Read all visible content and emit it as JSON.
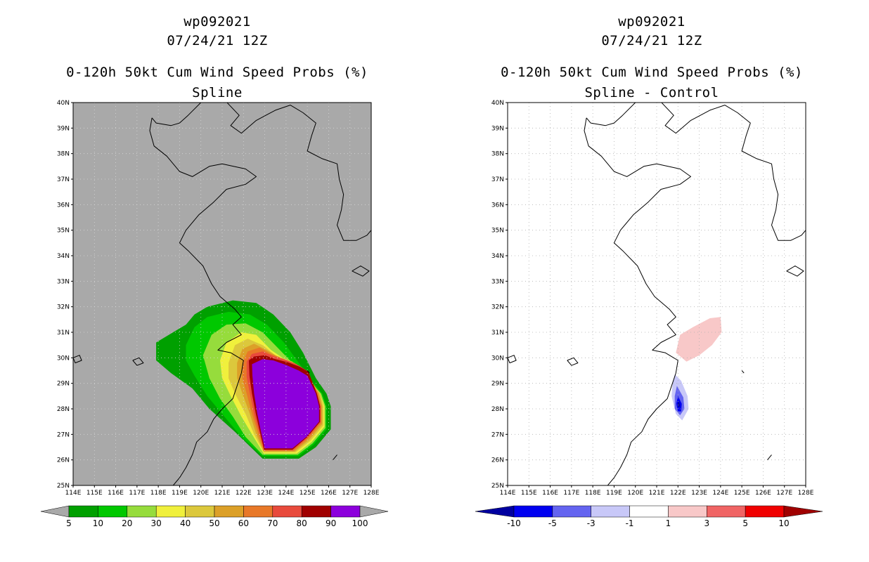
{
  "chart_data": [
    {
      "type": "heatmap",
      "storm_id": "wp092021",
      "datetime": "07/24/21 12Z",
      "title": "0-120h 50kt Cum Wind Speed Probs (%)",
      "subtitle": "Spline",
      "x_ticks": [
        "114E",
        "115E",
        "116E",
        "117E",
        "118E",
        "119E",
        "120E",
        "121E",
        "122E",
        "123E",
        "124E",
        "125E",
        "126E",
        "127E",
        "128E"
      ],
      "y_ticks": [
        "25N",
        "26N",
        "27N",
        "28N",
        "29N",
        "30N",
        "31N",
        "32N",
        "33N",
        "34N",
        "35N",
        "36N",
        "37N",
        "38N",
        "39N",
        "40N"
      ],
      "xlim": [
        114,
        128
      ],
      "ylim": [
        25,
        40
      ],
      "colorbar": {
        "labels": [
          "5",
          "10",
          "20",
          "30",
          "40",
          "50",
          "60",
          "70",
          "80",
          "90",
          "100"
        ],
        "colors": [
          "#00a000",
          "#00c800",
          "#96dc3c",
          "#f0f03c",
          "#dcc83c",
          "#dca028",
          "#e87828",
          "#e84a3c",
          "#a00000",
          "#8c00dc"
        ]
      },
      "contours": [
        {
          "level": 5,
          "color": "#00a000",
          "polygon": [
            [
              117.9,
              30.6
            ],
            [
              118.6,
              30.95
            ],
            [
              119.3,
              31.3
            ],
            [
              119.7,
              31.7
            ],
            [
              120.3,
              32.0
            ],
            [
              121.5,
              32.25
            ],
            [
              122.6,
              32.15
            ],
            [
              123.4,
              31.7
            ],
            [
              124.2,
              31.0
            ],
            [
              124.8,
              30.2
            ],
            [
              125.4,
              29.2
            ],
            [
              125.9,
              28.6
            ],
            [
              126.1,
              28.1
            ],
            [
              126.1,
              27.2
            ],
            [
              125.4,
              26.5
            ],
            [
              124.6,
              26.05
            ],
            [
              122.9,
              26.05
            ],
            [
              121.6,
              27.1
            ],
            [
              120.4,
              28.0
            ],
            [
              119.6,
              28.8
            ],
            [
              118.6,
              29.4
            ],
            [
              117.9,
              29.9
            ]
          ]
        },
        {
          "level": 10,
          "color": "#00c800",
          "polygon": [
            [
              119.3,
              30.5
            ],
            [
              119.7,
              31.2
            ],
            [
              120.3,
              31.6
            ],
            [
              121.3,
              31.8
            ],
            [
              122.3,
              31.7
            ],
            [
              123.1,
              31.3
            ],
            [
              123.9,
              30.6
            ],
            [
              124.6,
              29.8
            ],
            [
              125.2,
              29.1
            ],
            [
              125.7,
              28.6
            ],
            [
              125.9,
              28.1
            ],
            [
              125.9,
              27.2
            ],
            [
              125.3,
              26.6
            ],
            [
              124.6,
              26.15
            ],
            [
              122.9,
              26.15
            ],
            [
              121.9,
              26.9
            ],
            [
              121.0,
              27.8
            ],
            [
              120.3,
              28.5
            ],
            [
              119.7,
              29.3
            ],
            [
              119.3,
              29.9
            ]
          ]
        },
        {
          "level": 20,
          "color": "#96dc3c",
          "polygon": [
            [
              120.1,
              30.1
            ],
            [
              120.5,
              30.9
            ],
            [
              121.2,
              31.3
            ],
            [
              122.1,
              31.35
            ],
            [
              122.9,
              31.0
            ],
            [
              123.6,
              30.4
            ],
            [
              124.3,
              29.8
            ],
            [
              125.1,
              29.1
            ],
            [
              125.65,
              28.6
            ],
            [
              125.85,
              28.1
            ],
            [
              125.85,
              27.25
            ],
            [
              125.25,
              26.65
            ],
            [
              124.55,
              26.2
            ],
            [
              122.9,
              26.2
            ],
            [
              122.1,
              26.9
            ],
            [
              121.5,
              27.7
            ],
            [
              120.9,
              28.4
            ],
            [
              120.4,
              29.2
            ]
          ]
        },
        {
          "level": 30,
          "color": "#f0f03c",
          "polygon": [
            [
              120.9,
              29.9
            ],
            [
              121.2,
              30.6
            ],
            [
              121.9,
              31.0
            ],
            [
              122.6,
              30.9
            ],
            [
              123.3,
              30.3
            ],
            [
              124.1,
              29.85
            ],
            [
              125.0,
              29.2
            ],
            [
              125.6,
              28.6
            ],
            [
              125.8,
              28.1
            ],
            [
              125.8,
              27.3
            ],
            [
              125.2,
              26.7
            ],
            [
              124.5,
              26.25
            ],
            [
              122.95,
              26.25
            ],
            [
              122.4,
              27.0
            ],
            [
              121.9,
              27.7
            ],
            [
              121.4,
              28.5
            ],
            [
              121.0,
              29.2
            ]
          ]
        },
        {
          "level": 40,
          "color": "#dcc83c",
          "polygon": [
            [
              121.3,
              29.8
            ],
            [
              121.6,
              30.5
            ],
            [
              122.2,
              30.75
            ],
            [
              122.9,
              30.5
            ],
            [
              123.5,
              30.1
            ],
            [
              124.3,
              29.85
            ],
            [
              125.0,
              29.3
            ],
            [
              125.6,
              28.6
            ],
            [
              125.75,
              28.1
            ],
            [
              125.75,
              27.35
            ],
            [
              125.15,
              26.75
            ],
            [
              124.45,
              26.3
            ],
            [
              122.95,
              26.3
            ],
            [
              122.5,
              27.0
            ],
            [
              122.1,
              27.8
            ],
            [
              121.6,
              28.6
            ],
            [
              121.3,
              29.2
            ]
          ]
        },
        {
          "level": 50,
          "color": "#dca028",
          "polygon": [
            [
              121.7,
              29.8
            ],
            [
              121.95,
              30.35
            ],
            [
              122.5,
              30.55
            ],
            [
              123.1,
              30.3
            ],
            [
              123.7,
              30.0
            ],
            [
              124.4,
              29.8
            ],
            [
              125.0,
              29.35
            ],
            [
              125.55,
              28.6
            ],
            [
              125.7,
              28.1
            ],
            [
              125.7,
              27.4
            ],
            [
              125.1,
              26.8
            ],
            [
              124.4,
              26.33
            ],
            [
              122.95,
              26.33
            ],
            [
              122.6,
              27.0
            ],
            [
              122.3,
              27.8
            ],
            [
              121.95,
              28.6
            ],
            [
              121.7,
              29.2
            ]
          ]
        },
        {
          "level": 60,
          "color": "#e87828",
          "polygon": [
            [
              121.95,
              29.8
            ],
            [
              122.2,
              30.25
            ],
            [
              122.75,
              30.4
            ],
            [
              123.3,
              30.15
            ],
            [
              123.9,
              29.95
            ],
            [
              124.5,
              29.75
            ],
            [
              125.0,
              29.4
            ],
            [
              125.5,
              28.6
            ],
            [
              125.65,
              28.1
            ],
            [
              125.65,
              27.45
            ],
            [
              125.05,
              26.85
            ],
            [
              124.35,
              26.36
            ],
            [
              122.95,
              26.36
            ],
            [
              122.7,
              27.0
            ],
            [
              122.4,
              27.8
            ],
            [
              122.15,
              28.6
            ],
            [
              121.95,
              29.2
            ]
          ]
        },
        {
          "level": 70,
          "color": "#e84a3c",
          "polygon": [
            [
              122.15,
              29.85
            ],
            [
              122.4,
              30.15
            ],
            [
              122.9,
              30.25
            ],
            [
              123.45,
              30.05
            ],
            [
              124.05,
              29.9
            ],
            [
              124.6,
              29.7
            ],
            [
              125.05,
              29.45
            ],
            [
              125.45,
              28.6
            ],
            [
              125.62,
              28.1
            ],
            [
              125.62,
              27.48
            ],
            [
              125.02,
              26.88
            ],
            [
              124.32,
              26.38
            ],
            [
              122.96,
              26.38
            ],
            [
              122.76,
              27.0
            ],
            [
              122.5,
              27.8
            ],
            [
              122.3,
              28.6
            ],
            [
              122.15,
              29.25
            ]
          ]
        },
        {
          "level": 80,
          "color": "#a00000",
          "polygon": [
            [
              122.25,
              29.9
            ],
            [
              122.5,
              30.05
            ],
            [
              123.0,
              30.1
            ],
            [
              123.5,
              29.95
            ],
            [
              124.1,
              29.82
            ],
            [
              124.65,
              29.65
            ],
            [
              125.05,
              29.45
            ],
            [
              125.45,
              28.6
            ],
            [
              125.6,
              28.1
            ],
            [
              125.6,
              27.5
            ],
            [
              125.0,
              26.9
            ],
            [
              124.3,
              26.4
            ],
            [
              122.97,
              26.4
            ],
            [
              122.8,
              27.0
            ],
            [
              122.58,
              27.8
            ],
            [
              122.4,
              28.6
            ],
            [
              122.28,
              29.3
            ]
          ]
        },
        {
          "level": 90,
          "color": "#8c00dc",
          "polygon": [
            [
              122.4,
              29.75
            ],
            [
              122.9,
              29.95
            ],
            [
              123.4,
              29.9
            ],
            [
              124.0,
              29.72
            ],
            [
              124.6,
              29.5
            ],
            [
              125.0,
              29.3
            ],
            [
              125.4,
              28.6
            ],
            [
              125.55,
              28.1
            ],
            [
              125.55,
              27.5
            ],
            [
              124.95,
              26.9
            ],
            [
              124.3,
              26.45
            ],
            [
              123.0,
              26.45
            ],
            [
              122.85,
              27.0
            ],
            [
              122.65,
              27.8
            ],
            [
              122.5,
              28.6
            ],
            [
              122.42,
              29.3
            ]
          ]
        }
      ]
    },
    {
      "type": "heatmap",
      "storm_id": "wp092021",
      "datetime": "07/24/21 12Z",
      "title": "0-120h 50kt Cum Wind Speed Probs (%)",
      "subtitle": "Spline - Control",
      "x_ticks": [
        "114E",
        "115E",
        "116E",
        "117E",
        "118E",
        "119E",
        "120E",
        "121E",
        "122E",
        "123E",
        "124E",
        "125E",
        "126E",
        "127E",
        "128E"
      ],
      "y_ticks": [
        "25N",
        "26N",
        "27N",
        "28N",
        "29N",
        "30N",
        "31N",
        "32N",
        "33N",
        "34N",
        "35N",
        "36N",
        "37N",
        "38N",
        "39N",
        "40N"
      ],
      "xlim": [
        114,
        128
      ],
      "ylim": [
        25,
        40
      ],
      "colorbar": {
        "labels": [
          "-10",
          "-5",
          "-3",
          "-1",
          "1",
          "3",
          "5",
          "10"
        ],
        "colors": [
          "#0000a0",
          "#0000f0",
          "#6464f0",
          "#c8c8f8",
          "#ffffff",
          "#f8c8c8",
          "#f06464",
          "#f00000",
          "#a00000"
        ]
      },
      "contours": [
        {
          "level": 1,
          "color": "#f8c8c8",
          "polygon": [
            [
              121.9,
              30.2
            ],
            [
              122.1,
              30.9
            ],
            [
              122.7,
              31.2
            ],
            [
              123.5,
              31.55
            ],
            [
              124.0,
              31.6
            ],
            [
              124.05,
              31.0
            ],
            [
              123.6,
              30.5
            ],
            [
              123.0,
              30.1
            ],
            [
              122.4,
              29.85
            ]
          ]
        },
        {
          "level": -1,
          "color": "#c8c8f8",
          "polygon": [
            [
              121.85,
              29.35
            ],
            [
              122.15,
              29.1
            ],
            [
              122.45,
              28.5
            ],
            [
              122.5,
              28.0
            ],
            [
              122.2,
              27.55
            ],
            [
              121.9,
              27.8
            ],
            [
              121.7,
              28.5
            ],
            [
              121.75,
              29.0
            ]
          ]
        },
        {
          "level": -3,
          "color": "#6464f0",
          "polygon": [
            [
              121.95,
              28.9
            ],
            [
              122.25,
              28.45
            ],
            [
              122.3,
              28.0
            ],
            [
              122.1,
              27.75
            ],
            [
              121.85,
              28.0
            ],
            [
              121.85,
              28.5
            ]
          ]
        },
        {
          "level": -5,
          "color": "#0000f0",
          "polygon": [
            [
              122.0,
              28.5
            ],
            [
              122.18,
              28.2
            ],
            [
              122.15,
              27.9
            ],
            [
              122.0,
              27.9
            ],
            [
              121.92,
              28.2
            ]
          ]
        },
        {
          "level": -10,
          "color": "#0000a0",
          "polygon": [
            [
              122.05,
              28.3
            ],
            [
              122.1,
              28.1
            ],
            [
              122.0,
              28.05
            ],
            [
              121.98,
              28.2
            ]
          ]
        }
      ]
    }
  ]
}
